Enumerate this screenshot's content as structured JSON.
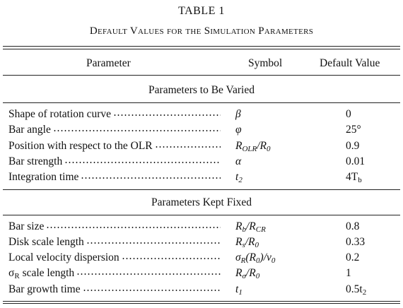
{
  "title": "TABLE 1",
  "subtitle": "Default Values for the Simulation Parameters",
  "table": {
    "header": [
      "Parameter",
      "Symbol",
      "Default Value"
    ],
    "sections": [
      {
        "title": "Parameters to Be Varied",
        "rows": [
          {
            "parameter": "Shape of rotation curve",
            "symbol": [
              {
                "text": "β"
              }
            ],
            "value": [
              {
                "text": "0"
              }
            ]
          },
          {
            "parameter": "Bar angle",
            "symbol": [
              {
                "text": "φ"
              }
            ],
            "value": [
              {
                "text": "25°"
              }
            ]
          },
          {
            "parameter": "Position with respect to the OLR",
            "symbol": [
              {
                "text": "R",
                "sub": "OLR"
              },
              {
                "text": "/R",
                "sub": "0"
              }
            ],
            "value": [
              {
                "text": "0.9"
              }
            ]
          },
          {
            "parameter": "Bar strength",
            "symbol": [
              {
                "text": "α"
              }
            ],
            "value": [
              {
                "text": "0.01"
              }
            ]
          },
          {
            "parameter": "Integration time",
            "symbol": [
              {
                "text": "t",
                "sub": "2"
              }
            ],
            "value": [
              {
                "text": "4T",
                "sub": "b"
              }
            ]
          }
        ]
      },
      {
        "title": "Parameters Kept Fixed",
        "rows": [
          {
            "parameter": "Bar size",
            "symbol": [
              {
                "text": "R",
                "sub": "b"
              },
              {
                "text": "/R",
                "sub": "CR"
              }
            ],
            "value": [
              {
                "text": "0.8"
              }
            ]
          },
          {
            "parameter": "Disk scale length",
            "symbol": [
              {
                "text": "R",
                "sub": "s"
              },
              {
                "text": "/R",
                "sub": "0"
              }
            ],
            "value": [
              {
                "text": "0.33"
              }
            ]
          },
          {
            "parameter": "Local velocity dispersion",
            "symbol": [
              {
                "text": "σ",
                "sub": "R"
              },
              {
                "text": "(R",
                "sub": "0"
              },
              {
                "text": ")/v",
                "sub": "0"
              }
            ],
            "value": [
              {
                "text": "0.2"
              }
            ]
          },
          {
            "parameter": [
              {
                "text": "σ",
                "sub": "R"
              },
              {
                "text": " scale length"
              }
            ],
            "symbol": [
              {
                "text": "R",
                "sub": "σ"
              },
              {
                "text": "/R",
                "sub": "0"
              }
            ],
            "value": [
              {
                "text": "1"
              }
            ]
          },
          {
            "parameter": "Bar growth time",
            "symbol": [
              {
                "text": "t",
                "sub": "1"
              }
            ],
            "value": [
              {
                "text": "0.5t",
                "sub": "2"
              }
            ]
          }
        ]
      }
    ]
  }
}
